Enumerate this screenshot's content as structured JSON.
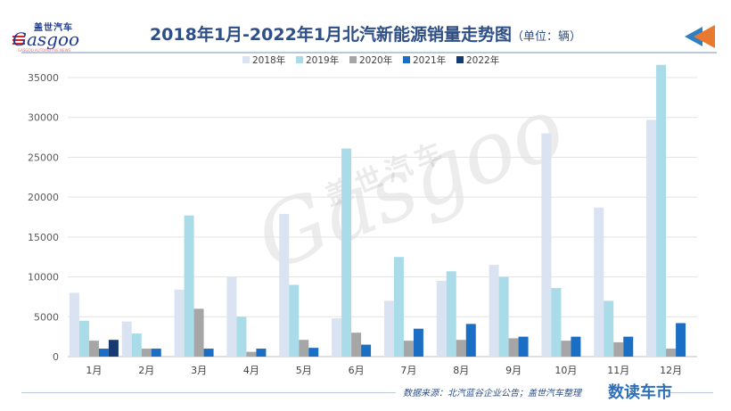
{
  "logo": {
    "cn": "盖世汽车",
    "en": "Gasgoo",
    "sub": "GASGOO AUTOMOTIVE NEWS"
  },
  "header": {
    "title": "2018年1月-2022年1月北汽新能源销量走势图",
    "unit": "（单位：辆）"
  },
  "watermark": {
    "cn": "盖世汽车",
    "en": "Gasgoo"
  },
  "footer": {
    "source": "数据来源：北汽蓝谷企业公告；盖世汽车整理",
    "brand": "数读车市"
  },
  "colors": {
    "title": "#2e4e86",
    "accent_arrow": "#e8792f"
  },
  "chart_data": {
    "type": "bar",
    "categories": [
      "1月",
      "2月",
      "3月",
      "4月",
      "5月",
      "6月",
      "7月",
      "8月",
      "9月",
      "10月",
      "11月",
      "12月"
    ],
    "series": [
      {
        "name": "2018年",
        "color": "#d9e3f1",
        "values": [
          8000,
          4400,
          8400,
          10000,
          17900,
          4800,
          7000,
          9500,
          11500,
          28000,
          18700,
          29700
        ]
      },
      {
        "name": "2019年",
        "color": "#a9dbe8",
        "values": [
          4500,
          2900,
          17700,
          5000,
          9000,
          26100,
          12500,
          10700,
          10000,
          8600,
          7000,
          36600
        ]
      },
      {
        "name": "2020年",
        "color": "#a6a6a6",
        "values": [
          2000,
          1000,
          6000,
          600,
          2100,
          3000,
          2000,
          2100,
          2300,
          2000,
          1800,
          1000
        ]
      },
      {
        "name": "2021年",
        "color": "#1a6fc4",
        "values": [
          1000,
          1000,
          1000,
          1000,
          1100,
          1500,
          3500,
          4100,
          2500,
          2500,
          2500,
          4200
        ]
      },
      {
        "name": "2022年",
        "color": "#173a73",
        "values": [
          2100,
          null,
          null,
          null,
          null,
          null,
          null,
          null,
          null,
          null,
          null,
          null
        ]
      }
    ],
    "ylim": [
      0,
      35000
    ],
    "yticks": [
      0,
      5000,
      10000,
      15000,
      20000,
      25000,
      30000,
      35000
    ],
    "grid": true,
    "legend": "top"
  }
}
